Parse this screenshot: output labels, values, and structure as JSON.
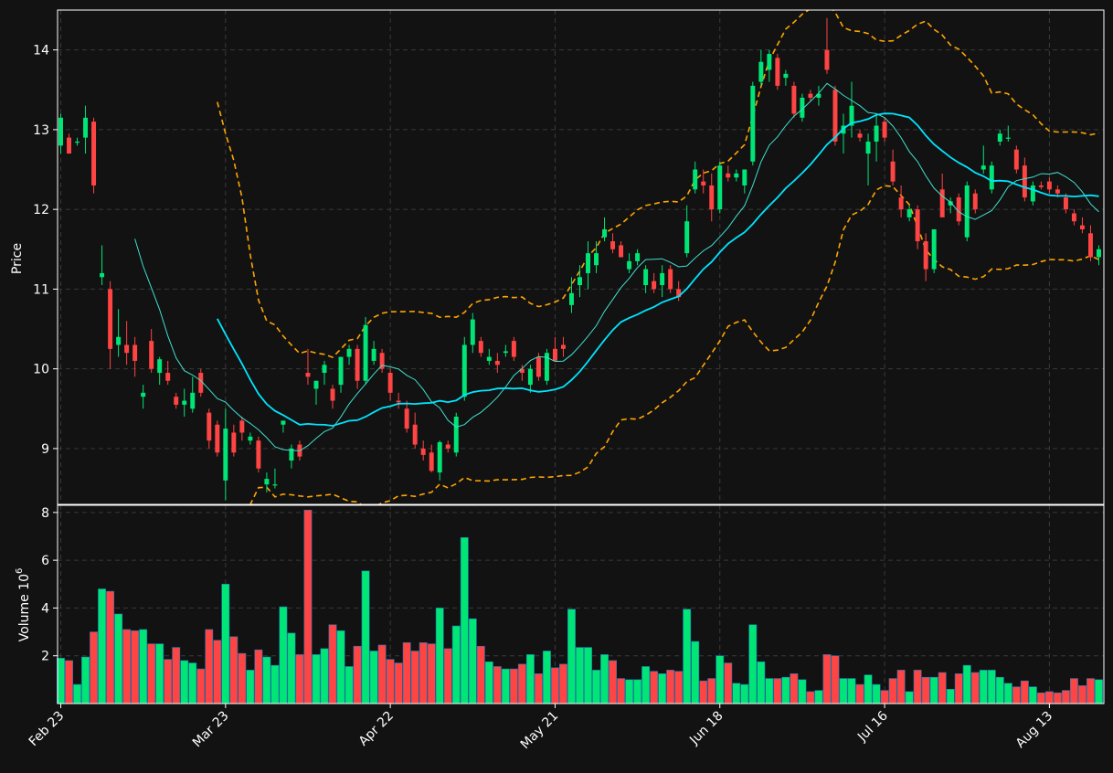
{
  "colors": {
    "background": "#121212",
    "up": "#00e676",
    "down": "#ff4444",
    "sma_fast": "#40e0d0",
    "sma_slow": "#00e5ff",
    "bollinger": "#ffa500",
    "grid": "#3a3a3a",
    "text": "#ffffff"
  },
  "chart_data": [
    {
      "type": "candlestick",
      "ylabel": "Price",
      "ylim": [
        8.3,
        14.5
      ],
      "yticks": [
        9,
        10,
        11,
        12,
        13,
        14
      ],
      "grid": true,
      "overlays": [
        "moving-average-fast",
        "moving-average-slow",
        "bollinger-bands-upper",
        "bollinger-bands-lower"
      ]
    },
    {
      "type": "bar",
      "ylabel": "Volume",
      "ylabel_exponent": "10",
      "ylabel_exponent_power": "6",
      "ylim": [
        0,
        8.3
      ],
      "yticks": [
        2,
        4,
        6,
        8
      ],
      "grid": true
    }
  ],
  "x_axis": {
    "tick_labels": [
      "Feb 23",
      "Mar 23",
      "Apr 22",
      "May 21",
      "Jun 18",
      "Jul 16",
      "Aug 13"
    ],
    "tick_indices": [
      0,
      20,
      40,
      60,
      80,
      100,
      120
    ]
  },
  "candles": [
    [
      12.8,
      13.2,
      12.7,
      13.15
    ],
    [
      12.9,
      12.95,
      12.7,
      12.7
    ],
    [
      12.85,
      12.9,
      12.8,
      12.85
    ],
    [
      12.9,
      13.3,
      12.7,
      13.15
    ],
    [
      13.1,
      13.15,
      12.2,
      12.3
    ],
    [
      11.15,
      11.55,
      11.05,
      11.2
    ],
    [
      11.0,
      11.1,
      10.0,
      10.25
    ],
    [
      10.3,
      10.75,
      10.15,
      10.4
    ],
    [
      10.3,
      10.6,
      10.05,
      10.2
    ],
    [
      10.3,
      10.4,
      9.9,
      10.1
    ],
    [
      9.65,
      9.8,
      9.5,
      9.7
    ],
    [
      10.35,
      10.5,
      9.95,
      10.0
    ],
    [
      9.95,
      10.15,
      9.8,
      10.12
    ],
    [
      9.95,
      10.1,
      9.8,
      9.85
    ],
    [
      9.65,
      9.7,
      9.5,
      9.55
    ],
    [
      9.55,
      9.75,
      9.4,
      9.6
    ],
    [
      9.5,
      9.9,
      9.45,
      9.7
    ],
    [
      9.95,
      10.0,
      9.65,
      9.7
    ],
    [
      9.45,
      9.5,
      9.0,
      9.1
    ],
    [
      9.3,
      9.35,
      8.9,
      8.95
    ],
    [
      8.6,
      9.5,
      8.35,
      9.25
    ],
    [
      9.2,
      9.3,
      8.9,
      8.95
    ],
    [
      9.35,
      9.4,
      9.1,
      9.2
    ],
    [
      9.1,
      9.2,
      9.05,
      9.15
    ],
    [
      9.1,
      9.15,
      8.7,
      8.75
    ],
    [
      8.55,
      8.7,
      8.45,
      8.62
    ],
    [
      8.55,
      8.75,
      8.5,
      8.55
    ],
    [
      9.3,
      9.35,
      9.2,
      9.35
    ],
    [
      8.85,
      9.05,
      8.75,
      9.0
    ],
    [
      9.05,
      9.1,
      8.85,
      8.9
    ],
    [
      9.95,
      10.25,
      9.8,
      9.9
    ],
    [
      9.75,
      9.85,
      9.55,
      9.85
    ],
    [
      9.95,
      10.1,
      9.8,
      10.05
    ],
    [
      9.75,
      9.8,
      9.5,
      9.6
    ],
    [
      9.8,
      10.15,
      9.7,
      10.15
    ],
    [
      10.15,
      10.3,
      10.05,
      10.25
    ],
    [
      10.25,
      10.3,
      9.75,
      9.85
    ],
    [
      9.85,
      10.65,
      9.8,
      10.55
    ],
    [
      10.1,
      10.35,
      10.05,
      10.25
    ],
    [
      10.2,
      10.25,
      9.95,
      10.0
    ],
    [
      9.95,
      10.0,
      9.6,
      9.7
    ],
    [
      9.6,
      9.7,
      9.5,
      9.58
    ],
    [
      9.5,
      9.6,
      9.2,
      9.25
    ],
    [
      9.3,
      9.45,
      9.0,
      9.05
    ],
    [
      9.0,
      9.1,
      8.85,
      8.92
    ],
    [
      8.95,
      9.05,
      8.7,
      8.72
    ],
    [
      8.7,
      9.1,
      8.6,
      9.08
    ],
    [
      9.05,
      9.1,
      8.95,
      9.0
    ],
    [
      8.95,
      9.45,
      8.9,
      9.4
    ],
    [
      9.65,
      10.4,
      9.6,
      10.3
    ],
    [
      10.3,
      10.7,
      10.2,
      10.62
    ],
    [
      10.35,
      10.4,
      10.15,
      10.2
    ],
    [
      10.1,
      10.25,
      10.05,
      10.15
    ],
    [
      10.1,
      10.2,
      9.95,
      10.05
    ],
    [
      10.2,
      10.3,
      10.15,
      10.22
    ],
    [
      10.35,
      10.4,
      10.1,
      10.15
    ],
    [
      10.0,
      10.05,
      9.85,
      9.95
    ],
    [
      9.8,
      10.05,
      9.7,
      10.0
    ],
    [
      10.15,
      10.2,
      9.85,
      9.9
    ],
    [
      9.85,
      10.25,
      9.8,
      10.2
    ],
    [
      10.25,
      10.4,
      10.1,
      10.1
    ],
    [
      10.3,
      10.4,
      10.15,
      10.25
    ],
    [
      10.8,
      11.15,
      10.7,
      10.95
    ],
    [
      11.05,
      11.3,
      10.9,
      11.15
    ],
    [
      11.2,
      11.6,
      11.0,
      11.45
    ],
    [
      11.3,
      11.6,
      11.2,
      11.45
    ],
    [
      11.65,
      11.9,
      11.6,
      11.75
    ],
    [
      11.6,
      11.7,
      11.45,
      11.5
    ],
    [
      11.55,
      11.6,
      11.4,
      11.4
    ],
    [
      11.25,
      11.45,
      11.2,
      11.35
    ],
    [
      11.35,
      11.5,
      11.3,
      11.45
    ],
    [
      11.05,
      11.3,
      10.95,
      11.25
    ],
    [
      11.1,
      11.2,
      10.95,
      11.0
    ],
    [
      11.05,
      11.3,
      10.9,
      11.2
    ],
    [
      11.25,
      11.3,
      10.95,
      11.0
    ],
    [
      11.0,
      11.1,
      10.85,
      10.9
    ],
    [
      11.45,
      12.05,
      11.4,
      11.85
    ],
    [
      12.25,
      12.6,
      12.2,
      12.5
    ],
    [
      12.35,
      12.5,
      12.2,
      12.3
    ],
    [
      12.3,
      12.45,
      11.85,
      12.0
    ],
    [
      12.0,
      12.6,
      11.95,
      12.55
    ],
    [
      12.45,
      12.55,
      12.35,
      12.4
    ],
    [
      12.4,
      12.5,
      12.35,
      12.45
    ],
    [
      12.3,
      12.5,
      12.2,
      12.5
    ],
    [
      12.6,
      13.6,
      12.55,
      13.55
    ],
    [
      13.6,
      14.0,
      13.55,
      13.85
    ],
    [
      13.75,
      14.0,
      13.6,
      13.95
    ],
    [
      13.9,
      13.95,
      13.5,
      13.55
    ],
    [
      13.65,
      13.75,
      13.55,
      13.7
    ],
    [
      13.55,
      13.6,
      13.15,
      13.2
    ],
    [
      13.15,
      13.45,
      13.1,
      13.4
    ],
    [
      13.45,
      13.5,
      13.35,
      13.4
    ],
    [
      13.4,
      13.55,
      13.3,
      13.45
    ],
    [
      14.0,
      14.4,
      13.7,
      13.75
    ],
    [
      13.5,
      13.55,
      12.8,
      12.85
    ],
    [
      12.95,
      13.2,
      12.7,
      13.05
    ],
    [
      13.05,
      13.6,
      12.9,
      13.3
    ],
    [
      12.95,
      13.0,
      12.85,
      12.9
    ],
    [
      12.7,
      12.95,
      12.3,
      12.85
    ],
    [
      12.85,
      13.2,
      12.6,
      13.05
    ],
    [
      13.1,
      13.15,
      12.85,
      12.9
    ],
    [
      12.6,
      12.75,
      12.3,
      12.35
    ],
    [
      12.15,
      12.3,
      11.9,
      12.0
    ],
    [
      11.9,
      12.05,
      11.85,
      12.0
    ],
    [
      12.0,
      12.05,
      11.5,
      11.6
    ],
    [
      11.6,
      11.7,
      11.1,
      11.25
    ],
    [
      11.25,
      11.75,
      11.2,
      11.75
    ],
    [
      12.25,
      12.45,
      11.9,
      11.9
    ],
    [
      12.05,
      12.15,
      11.95,
      12.1
    ],
    [
      12.15,
      12.2,
      11.8,
      11.85
    ],
    [
      11.65,
      12.35,
      11.6,
      12.3
    ],
    [
      12.2,
      12.25,
      11.95,
      12.0
    ],
    [
      12.5,
      12.8,
      12.45,
      12.55
    ],
    [
      12.25,
      12.6,
      12.2,
      12.55
    ],
    [
      12.85,
      13.0,
      12.8,
      12.95
    ],
    [
      12.9,
      13.05,
      12.85,
      12.9
    ],
    [
      12.75,
      12.8,
      12.45,
      12.5
    ],
    [
      12.55,
      12.65,
      12.1,
      12.15
    ],
    [
      12.1,
      12.35,
      12.05,
      12.3
    ],
    [
      12.3,
      12.35,
      12.25,
      12.28
    ],
    [
      12.35,
      12.4,
      12.2,
      12.25
    ],
    [
      12.25,
      12.3,
      12.15,
      12.2
    ],
    [
      12.15,
      12.2,
      11.95,
      12.0
    ],
    [
      11.95,
      12.0,
      11.8,
      11.85
    ],
    [
      11.8,
      11.9,
      11.7,
      11.75
    ],
    [
      11.7,
      11.8,
      11.35,
      11.4
    ],
    [
      11.4,
      11.55,
      11.3,
      11.5
    ]
  ],
  "volumes": [
    1.9,
    1.8,
    0.8,
    1.95,
    3.0,
    4.8,
    4.7,
    3.75,
    3.1,
    3.05,
    3.1,
    2.5,
    2.5,
    1.85,
    2.35,
    1.8,
    1.7,
    1.45,
    3.1,
    2.65,
    5.0,
    2.8,
    2.1,
    1.4,
    2.25,
    1.95,
    1.6,
    4.05,
    2.95,
    2.05,
    8.1,
    2.05,
    2.3,
    3.3,
    3.05,
    1.55,
    2.4,
    5.55,
    2.2,
    2.45,
    1.85,
    1.7,
    2.55,
    2.2,
    2.55,
    2.5,
    4.0,
    2.3,
    3.25,
    6.95,
    3.55,
    2.4,
    1.75,
    1.55,
    1.45,
    1.45,
    1.65,
    2.05,
    1.25,
    2.2,
    1.5,
    1.65,
    3.95,
    2.35,
    2.35,
    1.4,
    2.05,
    1.8,
    1.05,
    1.0,
    1.0,
    1.55,
    1.35,
    1.25,
    1.4,
    1.35,
    3.95,
    2.6,
    0.95,
    1.05,
    2.0,
    1.7,
    0.85,
    0.8,
    3.3,
    1.75,
    1.05,
    1.05,
    1.1,
    1.25,
    1.0,
    0.5,
    0.55,
    2.05,
    2.0,
    1.05,
    1.05,
    0.8,
    1.2,
    0.8,
    0.55,
    1.05,
    1.4,
    0.5,
    1.4,
    1.1,
    1.1,
    1.3,
    0.6,
    1.25,
    1.6,
    1.3,
    1.4,
    1.4,
    1.1,
    0.85,
    0.7,
    0.95,
    0.7,
    0.45,
    0.5,
    0.45,
    0.55,
    1.05,
    0.75,
    1.05,
    1.0
  ]
}
